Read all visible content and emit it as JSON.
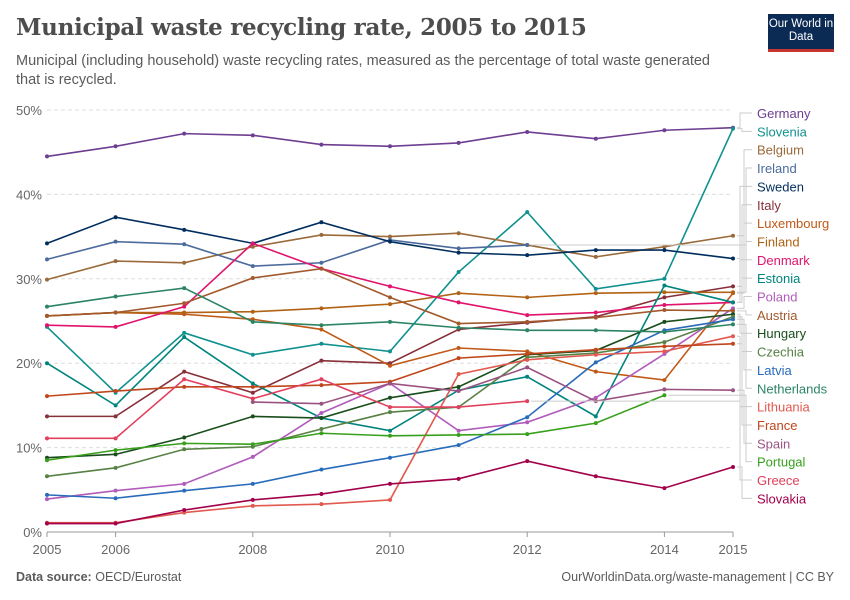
{
  "header": {
    "title": "Municipal waste recycling rate, 2005 to 2015",
    "subtitle": "Municipal (including household) waste recycling rates, measured as the percentage of total waste generated that is recycled.",
    "logo_text": "Our World in Data"
  },
  "footer": {
    "source_label": "Data source:",
    "source": "OECD/Eurostat",
    "url_license": "OurWorldinData.org/waste-management | CC BY"
  },
  "chart_data": {
    "type": "line",
    "title": "Municipal waste recycling rate, 2005 to 2015",
    "x": [
      2005,
      2006,
      2007,
      2008,
      2009,
      2010,
      2011,
      2012,
      2013,
      2014,
      2015
    ],
    "x_tick_labels": [
      "2005",
      "2006",
      "2008",
      "2010",
      "2012",
      "2014",
      "2015"
    ],
    "y_tick_labels": [
      "0%",
      "10%",
      "20%",
      "30%",
      "40%",
      "50%"
    ],
    "ylim": [
      0,
      50
    ],
    "y_unit": "%",
    "grid": "horizontal dashed",
    "legend": "right, labels at line ends",
    "series": [
      {
        "name": "Germany",
        "color": "#6d3e91",
        "values": [
          44.5,
          45.7,
          47.2,
          47.0,
          45.9,
          45.7,
          46.1,
          47.4,
          46.6,
          47.6,
          47.9
        ]
      },
      {
        "name": "Slovenia",
        "color": "#10918f",
        "values": [
          24.3,
          16.5,
          23.6,
          21.0,
          22.3,
          21.4,
          30.8,
          37.9,
          28.8,
          30.0,
          47.8
        ]
      },
      {
        "name": "Belgium",
        "color": "#9a6a3a",
        "values": [
          29.9,
          32.1,
          31.9,
          33.8,
          35.2,
          35.0,
          35.4,
          34.0,
          32.6,
          33.8,
          35.1
        ]
      },
      {
        "name": "Ireland",
        "color": "#4c6a9c",
        "values": [
          32.3,
          34.4,
          34.1,
          31.5,
          31.9,
          34.6,
          33.6,
          34.0,
          null,
          null,
          null
        ]
      },
      {
        "name": "Sweden",
        "color": "#002e5e",
        "values": [
          34.2,
          37.3,
          35.8,
          34.2,
          36.7,
          34.4,
          33.1,
          32.8,
          33.4,
          33.4,
          32.4
        ]
      },
      {
        "name": "Italy",
        "color": "#883039",
        "values": [
          13.7,
          13.7,
          19.0,
          16.5,
          20.3,
          20.0,
          24.0,
          24.8,
          25.5,
          27.8,
          29.1
        ]
      },
      {
        "name": "Luxembourg",
        "color": "#c05917",
        "values": [
          25.6,
          26.0,
          25.8,
          25.2,
          24.0,
          19.7,
          21.8,
          21.4,
          19.0,
          18.0,
          28.3
        ]
      },
      {
        "name": "Finland",
        "color": "#b16214",
        "values": [
          25.6,
          26.0,
          26.0,
          26.1,
          26.5,
          27.0,
          28.3,
          27.8,
          28.3,
          28.4,
          28.4
        ]
      },
      {
        "name": "Denmark",
        "color": "#e0136d",
        "values": [
          24.5,
          24.3,
          26.7,
          34.2,
          31.2,
          29.1,
          27.2,
          25.7,
          26.0,
          26.9,
          27.2
        ]
      },
      {
        "name": "Estonia",
        "color": "#00847e",
        "values": [
          20.0,
          15.0,
          23.1,
          17.6,
          13.5,
          12.0,
          16.8,
          18.4,
          13.7,
          29.2,
          27.2
        ]
      },
      {
        "name": "Poland",
        "color": "#b15cbb",
        "values": [
          3.9,
          4.9,
          5.7,
          8.9,
          14.1,
          17.6,
          12.0,
          13.0,
          15.9,
          21.1,
          26.5
        ]
      },
      {
        "name": "Austria",
        "color": "#a2592d",
        "values": [
          25.6,
          26.0,
          27.1,
          30.1,
          31.2,
          27.8,
          24.7,
          24.9,
          25.4,
          26.3,
          26.2
        ]
      },
      {
        "name": "Hungary",
        "color": "#194e1c",
        "values": [
          8.8,
          9.2,
          11.2,
          13.7,
          13.5,
          15.9,
          17.2,
          21.0,
          21.5,
          24.9,
          25.8
        ]
      },
      {
        "name": "Czechia",
        "color": "#578145",
        "values": [
          6.6,
          7.6,
          9.8,
          10.1,
          12.2,
          14.2,
          14.8,
          20.7,
          21.2,
          22.5,
          25.5
        ]
      },
      {
        "name": "Latvia",
        "color": "#286bbb",
        "values": [
          4.4,
          4.0,
          4.9,
          5.7,
          7.4,
          8.8,
          10.3,
          13.6,
          20.1,
          23.9,
          25.2
        ]
      },
      {
        "name": "Netherlands",
        "color": "#2c8465",
        "values": [
          26.7,
          27.9,
          28.9,
          24.9,
          24.5,
          24.9,
          24.2,
          23.9,
          23.9,
          23.7,
          24.6
        ]
      },
      {
        "name": "Lithuania",
        "color": "#e1594f",
        "values": [
          1.1,
          1.1,
          2.3,
          3.1,
          3.3,
          3.8,
          18.7,
          20.4,
          21.0,
          21.4,
          23.2
        ]
      },
      {
        "name": "France",
        "color": "#c0461b",
        "values": [
          16.1,
          16.7,
          17.2,
          17.2,
          17.4,
          17.8,
          20.6,
          21.1,
          21.6,
          22.0,
          22.3
        ]
      },
      {
        "name": "Spain",
        "color": "#9a5381",
        "values": [
          null,
          null,
          null,
          15.4,
          15.2,
          17.6,
          16.7,
          19.5,
          15.5,
          16.9,
          16.8
        ]
      },
      {
        "name": "Portugal",
        "color": "#38a01c",
        "values": [
          8.5,
          9.7,
          10.5,
          10.4,
          11.7,
          11.4,
          11.5,
          11.6,
          12.9,
          16.2,
          null
        ]
      },
      {
        "name": "Greece",
        "color": "#e0405b",
        "values": [
          11.1,
          11.1,
          18.1,
          15.8,
          18.1,
          14.8,
          14.8,
          15.5,
          null,
          null,
          null
        ]
      },
      {
        "name": "Slovakia",
        "color": "#a2004a",
        "values": [
          1.0,
          1.0,
          2.6,
          3.8,
          4.5,
          5.7,
          6.3,
          8.4,
          6.6,
          5.2,
          7.7
        ]
      }
    ]
  }
}
